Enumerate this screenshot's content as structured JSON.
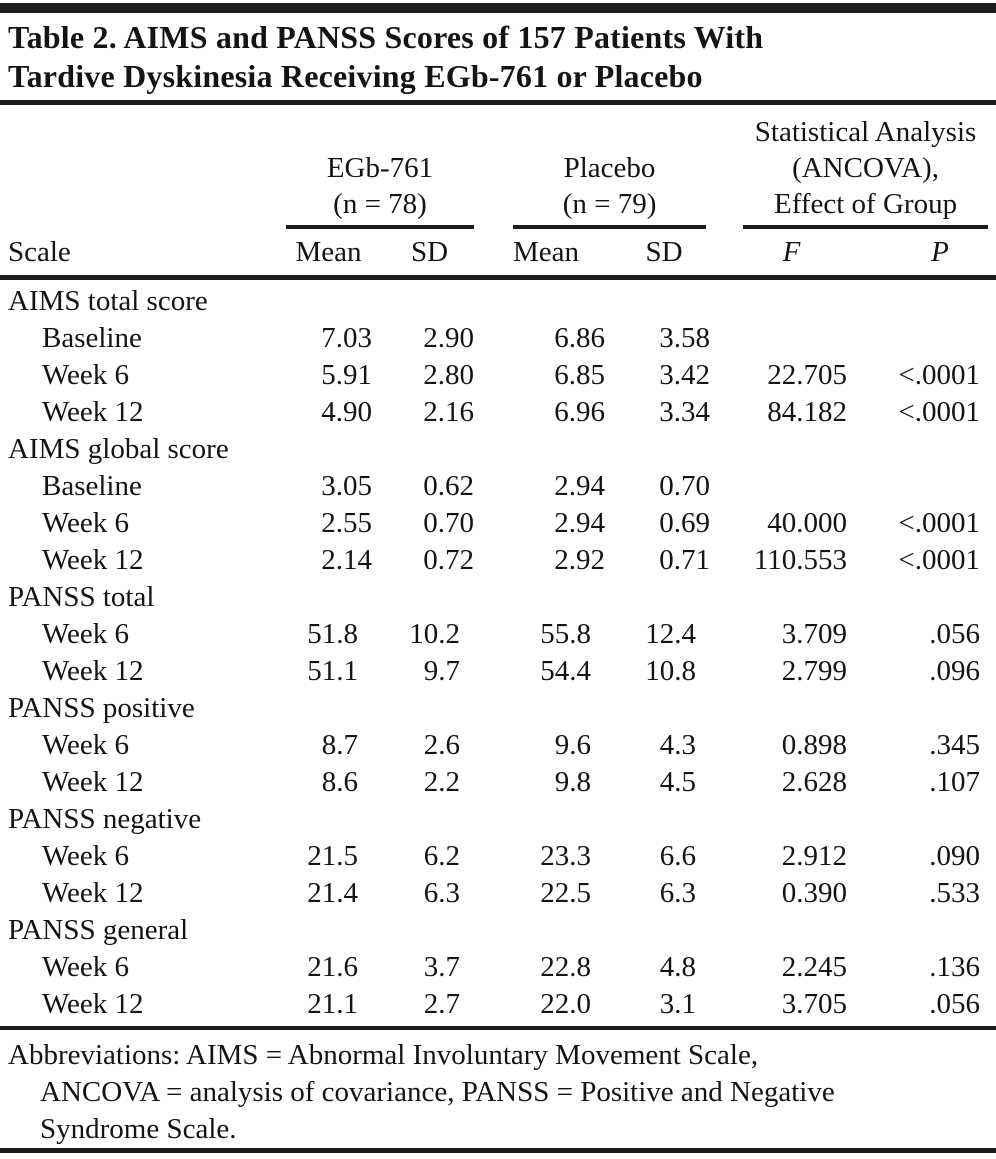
{
  "title": {
    "line1": "Table 2. AIMS and PANSS Scores of 157 Patients With",
    "line2": "Tardive Dyskinesia Receiving EGb-761 or Placebo"
  },
  "columns": {
    "scale_label": "Scale",
    "groups": [
      {
        "lines": [
          "EGb-761",
          "(n = 78)"
        ]
      },
      {
        "lines": [
          "Placebo",
          "(n = 79)"
        ]
      },
      {
        "lines": [
          "Statistical Analysis",
          "(ANCOVA),",
          "Effect of Group"
        ]
      }
    ],
    "subheaders": [
      "Mean",
      "SD",
      "Mean",
      "SD",
      "F",
      "P"
    ]
  },
  "rows": [
    {
      "label": "AIMS total score",
      "indent": false,
      "values": [
        "",
        "",
        "",
        "",
        "",
        ""
      ]
    },
    {
      "label": "Baseline",
      "indent": true,
      "values": [
        "7.03",
        "2.90",
        "6.86",
        "3.58",
        "",
        ""
      ]
    },
    {
      "label": "Week 6",
      "indent": true,
      "values": [
        "5.91",
        "2.80",
        "6.85",
        "3.42",
        "22.705",
        "<.0001"
      ]
    },
    {
      "label": "Week 12",
      "indent": true,
      "values": [
        "4.90",
        "2.16",
        "6.96",
        "3.34",
        "84.182",
        "<.0001"
      ]
    },
    {
      "label": "AIMS global score",
      "indent": false,
      "values": [
        "",
        "",
        "",
        "",
        "",
        ""
      ]
    },
    {
      "label": "Baseline",
      "indent": true,
      "values": [
        "3.05",
        "0.62",
        "2.94",
        "0.70",
        "",
        ""
      ]
    },
    {
      "label": "Week 6",
      "indent": true,
      "values": [
        "2.55",
        "0.70",
        "2.94",
        "0.69",
        "40.000",
        "<.0001"
      ]
    },
    {
      "label": "Week 12",
      "indent": true,
      "values": [
        "2.14",
        "0.72",
        "2.92",
        "0.71",
        "110.553",
        "<.0001"
      ]
    },
    {
      "label": "PANSS total",
      "indent": false,
      "values": [
        "",
        "",
        "",
        "",
        "",
        ""
      ]
    },
    {
      "label": "Week 6",
      "indent": true,
      "values": [
        "51.8",
        "10.2",
        "55.8",
        "12.4",
        "3.709",
        ".056"
      ]
    },
    {
      "label": "Week 12",
      "indent": true,
      "values": [
        "51.1",
        "9.7",
        "54.4",
        "10.8",
        "2.799",
        ".096"
      ]
    },
    {
      "label": "PANSS positive",
      "indent": false,
      "values": [
        "",
        "",
        "",
        "",
        "",
        ""
      ]
    },
    {
      "label": "Week 6",
      "indent": true,
      "values": [
        "8.7",
        "2.6",
        "9.6",
        "4.3",
        "0.898",
        ".345"
      ]
    },
    {
      "label": "Week 12",
      "indent": true,
      "values": [
        "8.6",
        "2.2",
        "9.8",
        "4.5",
        "2.628",
        ".107"
      ]
    },
    {
      "label": "PANSS negative",
      "indent": false,
      "values": [
        "",
        "",
        "",
        "",
        "",
        ""
      ]
    },
    {
      "label": "Week 6",
      "indent": true,
      "values": [
        "21.5",
        "6.2",
        "23.3",
        "6.6",
        "2.912",
        ".090"
      ]
    },
    {
      "label": "Week 12",
      "indent": true,
      "values": [
        "21.4",
        "6.3",
        "22.5",
        "6.3",
        "0.390",
        ".533"
      ]
    },
    {
      "label": "PANSS general",
      "indent": false,
      "values": [
        "",
        "",
        "",
        "",
        "",
        ""
      ]
    },
    {
      "label": "Week 6",
      "indent": true,
      "values": [
        "21.6",
        "3.7",
        "22.8",
        "4.8",
        "2.245",
        ".136"
      ]
    },
    {
      "label": "Week 12",
      "indent": true,
      "values": [
        "21.1",
        "2.7",
        "22.0",
        "3.1",
        "3.705",
        ".056"
      ]
    }
  ],
  "footnote": {
    "lines": [
      "Abbreviations: AIMS = Abnormal Involuntary Movement Scale,",
      "ANCOVA = analysis of covariance, PANSS = Positive and Negative",
      "Syndrome Scale."
    ]
  }
}
